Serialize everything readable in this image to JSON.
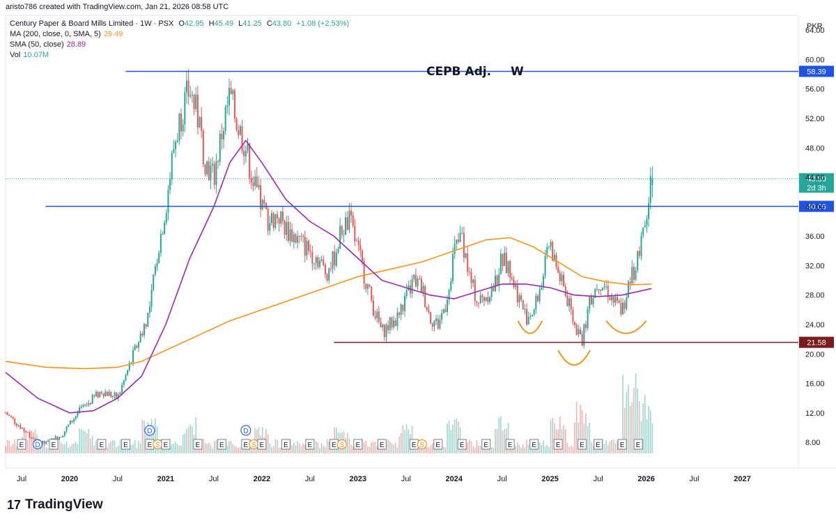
{
  "header": {
    "created_by": "aristo786 created with TradingView.com, Jan 21, 2026 08:58 UTC"
  },
  "symbol_line": {
    "name": "Century Paper & Board Mills Limited · 1W · PSX",
    "o_label": "O",
    "o": "42.95",
    "h_label": "H",
    "h": "45.49",
    "l_label": "L",
    "l": "41.25",
    "c_label": "C",
    "c": "43.80",
    "change": "+1.08 (+2.53%)"
  },
  "indicators": [
    {
      "label": "MA (200, close, 0, SMA, 5)",
      "value": "29.49",
      "color": "#f7931a"
    },
    {
      "label": "SMA (50, close)",
      "value": "28.89",
      "color": "#9c27b0"
    },
    {
      "label": "Vol",
      "value": "10.07M",
      "color": "#26a69a"
    }
  ],
  "currency": "PKR",
  "annotation_title": "CEPB Adj.",
  "annotation_w": "W",
  "colors": {
    "up": "#26a69a",
    "down": "#ef5350",
    "ma200": "#f7931a",
    "sma50": "#9c27b0",
    "hline_blue": "#1e53e5",
    "hline_maroon": "#7b1c1c",
    "last_price": "#26a69a",
    "arcs": "#f7931a"
  },
  "price_labels": {
    "resistance_top": "58.39",
    "resistance_mid": "40.05",
    "support": "21.58",
    "last": "43.80",
    "countdown": "2d 3h"
  },
  "logo": {
    "text": "TradingView"
  },
  "chart_data": {
    "type": "candlestick",
    "timeframe": "1W",
    "x_range": [
      "2019-05",
      "2027-08"
    ],
    "y_range": [
      6.5,
      66
    ],
    "y_ticks": [
      "8.00",
      "12.00",
      "16.00",
      "20.00",
      "24.00",
      "28.00",
      "32.00",
      "36.00",
      "40.00",
      "44.00",
      "48.00",
      "52.00",
      "56.00",
      "60.00",
      "64.00"
    ],
    "x_ticks": [
      "Jul",
      "2020",
      "Jul",
      "2021",
      "Jul",
      "2022",
      "Jul",
      "2023",
      "Jul",
      "2024",
      "Jul",
      "2025",
      "Jul",
      "2026",
      "Jul",
      "2027"
    ],
    "horizontal_lines": [
      {
        "value": 58.39,
        "from": "2020-08"
      },
      {
        "value": 40.05,
        "from": "2019-10"
      },
      {
        "value": 21.58,
        "from": "2022-10"
      }
    ],
    "price_path": [
      [
        "2019-05",
        12
      ],
      [
        "2019-07",
        10
      ],
      [
        "2019-09",
        8
      ],
      [
        "2019-10",
        7.8
      ],
      [
        "2019-12",
        9
      ],
      [
        "2020-02",
        12
      ],
      [
        "2020-03",
        13
      ],
      [
        "2020-05",
        15
      ],
      [
        "2020-07",
        14
      ],
      [
        "2020-08",
        17
      ],
      [
        "2020-09",
        20
      ],
      [
        "2020-10",
        23
      ],
      [
        "2020-11",
        26
      ],
      [
        "2020-12",
        34
      ],
      [
        "2021-01",
        40
      ],
      [
        "2021-02",
        48
      ],
      [
        "2021-03",
        53
      ],
      [
        "2021-04",
        56
      ],
      [
        "2021-05",
        52
      ],
      [
        "2021-06",
        46
      ],
      [
        "2021-07",
        44
      ],
      [
        "2021-08",
        50
      ],
      [
        "2021-09",
        55
      ],
      [
        "2021-10",
        51
      ],
      [
        "2021-11",
        48
      ],
      [
        "2021-12",
        43
      ],
      [
        "2022-01",
        40
      ],
      [
        "2022-02",
        38
      ],
      [
        "2022-03",
        39
      ],
      [
        "2022-04",
        37
      ],
      [
        "2022-06",
        35
      ],
      [
        "2022-08",
        33
      ],
      [
        "2022-09",
        31
      ],
      [
        "2022-10",
        33
      ],
      [
        "2022-11",
        37
      ],
      [
        "2022-12",
        38
      ],
      [
        "2023-01",
        34
      ],
      [
        "2023-02",
        30
      ],
      [
        "2023-03",
        26
      ],
      [
        "2023-04",
        23
      ],
      [
        "2023-05",
        24
      ],
      [
        "2023-06",
        25
      ],
      [
        "2023-08",
        30
      ],
      [
        "2023-09",
        29
      ],
      [
        "2023-10",
        25
      ],
      [
        "2023-11",
        24
      ],
      [
        "2023-12",
        27
      ],
      [
        "2024-01",
        34
      ],
      [
        "2024-02",
        36
      ],
      [
        "2024-03",
        30
      ],
      [
        "2024-04",
        27
      ],
      [
        "2024-06",
        29
      ],
      [
        "2024-07",
        33
      ],
      [
        "2024-08",
        31
      ],
      [
        "2024-09",
        28
      ],
      [
        "2024-10",
        25
      ],
      [
        "2024-11",
        26
      ],
      [
        "2024-12",
        30
      ],
      [
        "2025-01",
        35
      ],
      [
        "2025-02",
        31
      ],
      [
        "2025-03",
        28
      ],
      [
        "2025-04",
        24
      ],
      [
        "2025-05",
        22
      ],
      [
        "2025-06",
        27
      ],
      [
        "2025-07",
        30
      ],
      [
        "2025-08",
        29
      ],
      [
        "2025-09",
        27
      ],
      [
        "2025-10",
        26
      ],
      [
        "2025-11",
        30
      ],
      [
        "2025-12",
        33
      ],
      [
        "2026-01",
        38
      ],
      [
        "2026-01-21",
        43.8
      ]
    ],
    "ma200": [
      [
        "2019-05",
        19
      ],
      [
        "2019-10",
        18.2
      ],
      [
        "2020-03",
        18
      ],
      [
        "2020-07",
        18.2
      ],
      [
        "2020-10",
        19
      ],
      [
        "2021-01",
        20.5
      ],
      [
        "2021-05",
        22.5
      ],
      [
        "2021-09",
        24.5
      ],
      [
        "2022-01",
        26
      ],
      [
        "2022-05",
        27.5
      ],
      [
        "2022-09",
        29
      ],
      [
        "2023-01",
        30.5
      ],
      [
        "2023-05",
        31.5
      ],
      [
        "2023-09",
        32.5
      ],
      [
        "2024-01",
        34
      ],
      [
        "2024-05",
        35.5
      ],
      [
        "2024-08",
        35.8
      ],
      [
        "2024-11",
        34.5
      ],
      [
        "2025-02",
        32.5
      ],
      [
        "2025-05",
        30.5
      ],
      [
        "2025-08",
        29.8
      ],
      [
        "2025-11",
        29.4
      ],
      [
        "2026-01-21",
        29.49
      ]
    ],
    "sma50": [
      [
        "2019-05",
        17.5
      ],
      [
        "2019-09",
        14
      ],
      [
        "2020-01",
        12
      ],
      [
        "2020-04",
        12.3
      ],
      [
        "2020-07",
        14
      ],
      [
        "2020-10",
        17
      ],
      [
        "2021-01",
        24
      ],
      [
        "2021-04",
        33
      ],
      [
        "2021-07",
        40
      ],
      [
        "2021-09",
        46
      ],
      [
        "2021-11",
        49
      ],
      [
        "2022-01",
        46
      ],
      [
        "2022-04",
        41
      ],
      [
        "2022-07",
        38
      ],
      [
        "2022-10",
        36
      ],
      [
        "2023-01",
        33
      ],
      [
        "2023-04",
        30
      ],
      [
        "2023-07",
        29
      ],
      [
        "2023-10",
        28
      ],
      [
        "2024-01",
        27.5
      ],
      [
        "2024-04",
        28.5
      ],
      [
        "2024-07",
        29.5
      ],
      [
        "2024-10",
        29.5
      ],
      [
        "2025-01",
        29
      ],
      [
        "2025-04",
        28
      ],
      [
        "2025-07",
        27.8
      ],
      [
        "2025-10",
        28
      ],
      [
        "2026-01-21",
        28.89
      ]
    ],
    "volume_peaks": [
      [
        "2019-08",
        0.25
      ],
      [
        "2020-03",
        0.3
      ],
      [
        "2020-11",
        0.45
      ],
      [
        "2021-04",
        0.38
      ],
      [
        "2022-01",
        0.3
      ],
      [
        "2022-11",
        0.28
      ],
      [
        "2023-07",
        0.32
      ],
      [
        "2024-01",
        0.4
      ],
      [
        "2024-07",
        0.42
      ],
      [
        "2025-02",
        0.38
      ],
      [
        "2025-05",
        0.55
      ],
      [
        "2025-11",
        0.9
      ],
      [
        "2025-12",
        0.6
      ],
      [
        "2026-01",
        0.55
      ]
    ],
    "events": [
      {
        "date": "2019-07",
        "label": "E",
        "kind": "earnings"
      },
      {
        "date": "2019-09",
        "label": "D",
        "kind": "dividend"
      },
      {
        "date": "2019-11",
        "label": "E",
        "kind": "earnings"
      },
      {
        "date": "2020-05",
        "label": "E",
        "kind": "earnings"
      },
      {
        "date": "2020-08",
        "label": "E",
        "kind": "earnings"
      },
      {
        "date": "2020-11",
        "label": "E",
        "kind": "earnings"
      },
      {
        "date": "2020-12",
        "label": "S",
        "kind": "split"
      },
      {
        "date": "2021-01",
        "label": "E",
        "kind": "earnings"
      },
      {
        "date": "2021-05",
        "label": "E",
        "kind": "earnings"
      },
      {
        "date": "2021-08",
        "label": "E",
        "kind": "earnings"
      },
      {
        "date": "2021-11",
        "label": "E",
        "kind": "earnings"
      },
      {
        "date": "2021-12",
        "label": "S",
        "kind": "split"
      },
      {
        "date": "2022-01",
        "label": "E",
        "kind": "earnings"
      },
      {
        "date": "2022-04",
        "label": "E",
        "kind": "earnings"
      },
      {
        "date": "2022-07",
        "label": "E",
        "kind": "earnings"
      },
      {
        "date": "2022-10",
        "label": "E",
        "kind": "earnings"
      },
      {
        "date": "2022-11",
        "label": "S",
        "kind": "split"
      },
      {
        "date": "2023-01",
        "label": "E",
        "kind": "earnings"
      },
      {
        "date": "2023-04",
        "label": "E",
        "kind": "earnings"
      },
      {
        "date": "2023-08",
        "label": "E",
        "kind": "earnings"
      },
      {
        "date": "2023-09",
        "label": "S",
        "kind": "split"
      },
      {
        "date": "2023-11",
        "label": "E",
        "kind": "earnings"
      },
      {
        "date": "2024-02",
        "label": "E",
        "kind": "earnings"
      },
      {
        "date": "2024-05",
        "label": "E",
        "kind": "earnings"
      },
      {
        "date": "2024-08",
        "label": "E",
        "kind": "earnings"
      },
      {
        "date": "2024-11",
        "label": "E",
        "kind": "earnings"
      },
      {
        "date": "2025-02",
        "label": "E",
        "kind": "earnings"
      },
      {
        "date": "2025-05",
        "label": "E",
        "kind": "earnings"
      },
      {
        "date": "2025-07",
        "label": "E",
        "kind": "earnings"
      },
      {
        "date": "2025-10",
        "label": "E",
        "kind": "earnings"
      },
      {
        "date": "2025-12",
        "label": "E",
        "kind": "earnings"
      }
    ],
    "dividend_markers": [
      {
        "date": "2020-11",
        "label": "D"
      },
      {
        "date": "2021-11",
        "label": "D"
      }
    ],
    "pattern_arcs": [
      {
        "from": "2024-09",
        "to": "2024-12",
        "bottom": 22.8,
        "top": 24.5
      },
      {
        "from": "2025-02",
        "to": "2025-06",
        "bottom": 18.5,
        "top": 20.5
      },
      {
        "from": "2025-08",
        "to": "2026-01",
        "bottom": 22.8,
        "top": 24.5
      }
    ]
  }
}
